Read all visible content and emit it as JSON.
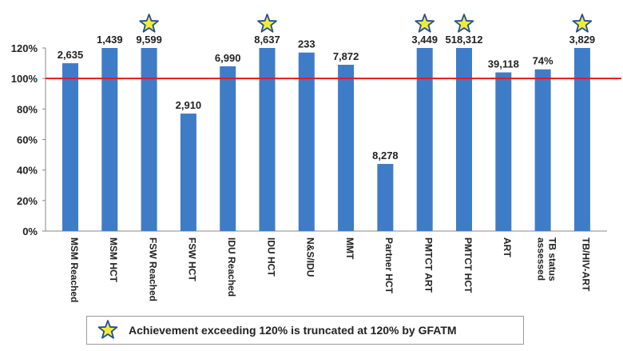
{
  "chart_data": {
    "type": "bar",
    "categories": [
      "MSM Reached",
      "MSM HCT",
      "FSW Reached",
      "FSW HCT",
      "IDU Reached",
      "IDU HCT",
      "N&S/IDU",
      "MMT",
      "Partner HCT",
      "PMTCT ART",
      "PMTCT HCT",
      "ART",
      "TB status assessed",
      "TB/HIV-ART"
    ],
    "values": [
      110,
      120,
      120,
      77,
      108,
      120,
      117,
      109,
      44,
      120,
      120,
      104,
      106,
      120
    ],
    "data_labels": [
      "2,635",
      "1,439",
      "9,599",
      "2,910",
      "6,990",
      "8,637",
      "233",
      "7,872",
      "8,278",
      "3,449",
      "518,312",
      "39,118",
      "74%",
      "3,829"
    ],
    "starred": [
      false,
      false,
      true,
      false,
      false,
      true,
      false,
      false,
      false,
      true,
      true,
      false,
      false,
      true
    ],
    "ylim": [
      0,
      120
    ],
    "yticks": [
      "0%",
      "20%",
      "40%",
      "60%",
      "80%",
      "100%",
      "120%"
    ],
    "reference_line": 100,
    "colors": {
      "bar": "#3f7cc8",
      "reference_line": "#e31a1c",
      "star_fill": "#f2ea3a",
      "star_stroke": "#1f4f9a"
    },
    "legend": {
      "text": "Achievement exceeding 120% is truncated at 120% by GFATM",
      "icon": "star-icon"
    }
  }
}
